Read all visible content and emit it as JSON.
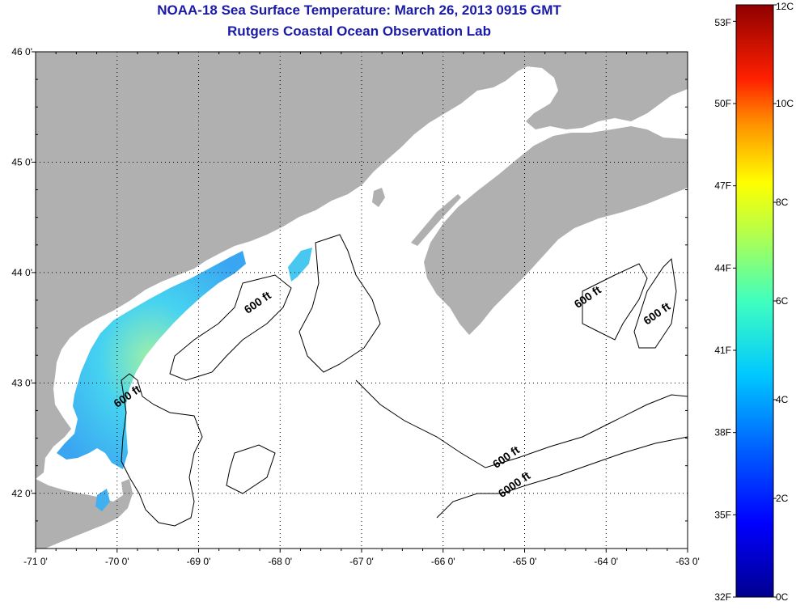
{
  "title": {
    "line1": "NOAA-18 Sea Surface Temperature:  March 26, 2013 0915 GMT",
    "line2": "Rutgers Coastal Ocean Observation Lab"
  },
  "colors": {
    "land": "#b0b0b0",
    "ocean": "#ffffff",
    "title": "#1a1aa8"
  },
  "axes": {
    "x_ticks": [
      {
        "value": -71,
        "label": "-71 0'"
      },
      {
        "value": -70,
        "label": "-70 0'"
      },
      {
        "value": -69,
        "label": "-69 0'"
      },
      {
        "value": -68,
        "label": "-68 0'"
      },
      {
        "value": -67,
        "label": "-67 0'"
      },
      {
        "value": -66,
        "label": "-66 0'"
      },
      {
        "value": -65,
        "label": "-65 0'"
      },
      {
        "value": -64,
        "label": "-64 0'"
      },
      {
        "value": -63,
        "label": "-63 0'"
      }
    ],
    "y_ticks": [
      {
        "value": 46,
        "label": "46 0'"
      },
      {
        "value": 45,
        "label": "45 0'"
      },
      {
        "value": 44,
        "label": "44 0'"
      },
      {
        "value": 43,
        "label": "43 0'"
      },
      {
        "value": 42,
        "label": "42 0'"
      }
    ],
    "lon_range": [
      -71,
      -63
    ],
    "lat_range": [
      41.5,
      46
    ],
    "grid": true
  },
  "contour_labels": [
    {
      "text": "600 ft",
      "lon": -68.25,
      "lat": 43.7
    },
    {
      "text": "600 ft",
      "lon": -69.85,
      "lat": 42.85
    },
    {
      "text": "600 ft",
      "lon": -65.2,
      "lat": 42.3
    },
    {
      "text": "6000 ft",
      "lon": -65.1,
      "lat": 42.05
    },
    {
      "text": "600 ft",
      "lon": -64.2,
      "lat": 43.75
    },
    {
      "text": "600 ft",
      "lon": -63.35,
      "lat": 43.6
    }
  ],
  "colorbar": {
    "f_labels": [
      {
        "label": "53F",
        "value": 53
      },
      {
        "label": "50F",
        "value": 50
      },
      {
        "label": "47F",
        "value": 47
      },
      {
        "label": "44F",
        "value": 44
      },
      {
        "label": "41F",
        "value": 41
      },
      {
        "label": "38F",
        "value": 38
      },
      {
        "label": "35F",
        "value": 35
      },
      {
        "label": "32F",
        "value": 32
      }
    ],
    "c_labels": [
      {
        "label": "12C",
        "value": 12
      },
      {
        "label": "10C",
        "value": 10
      },
      {
        "label": "8C",
        "value": 8
      },
      {
        "label": "6C",
        "value": 6
      },
      {
        "label": "4C",
        "value": 4
      },
      {
        "label": "2C",
        "value": 2
      },
      {
        "label": "0C",
        "value": 0
      }
    ]
  }
}
